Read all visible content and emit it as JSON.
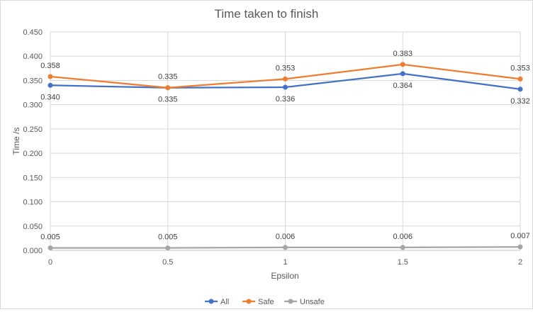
{
  "chart_data": {
    "type": "line",
    "title": "Time taken to finish",
    "xlabel": "Epsilon",
    "ylabel": "Time /s",
    "categories": [
      "0",
      "0.5",
      "1",
      "1.5",
      "2"
    ],
    "y_ticks": [
      "0.000",
      "0.050",
      "0.100",
      "0.150",
      "0.200",
      "0.250",
      "0.300",
      "0.350",
      "0.400",
      "0.450"
    ],
    "ylim": [
      0,
      0.45
    ],
    "grid": true,
    "legend_position": "bottom",
    "series": [
      {
        "name": "All",
        "color": "#4472c4",
        "values": [
          0.34,
          0.335,
          0.336,
          0.364,
          0.332
        ],
        "labels": [
          "0.340",
          "0.335",
          "0.336",
          "0.364",
          "0.332"
        ],
        "label_position": "below"
      },
      {
        "name": "Safe",
        "color": "#ed7d31",
        "values": [
          0.358,
          0.335,
          0.353,
          0.383,
          0.353
        ],
        "labels": [
          "0.358",
          "0.335",
          "0.353",
          "0.383",
          "0.353"
        ],
        "label_position": "above"
      },
      {
        "name": "Unsafe",
        "color": "#a5a5a5",
        "values": [
          0.005,
          0.005,
          0.006,
          0.006,
          0.007
        ],
        "labels": [
          "0.005",
          "0.005",
          "0.006",
          "0.006",
          "0.007"
        ],
        "label_position": "above"
      }
    ]
  }
}
